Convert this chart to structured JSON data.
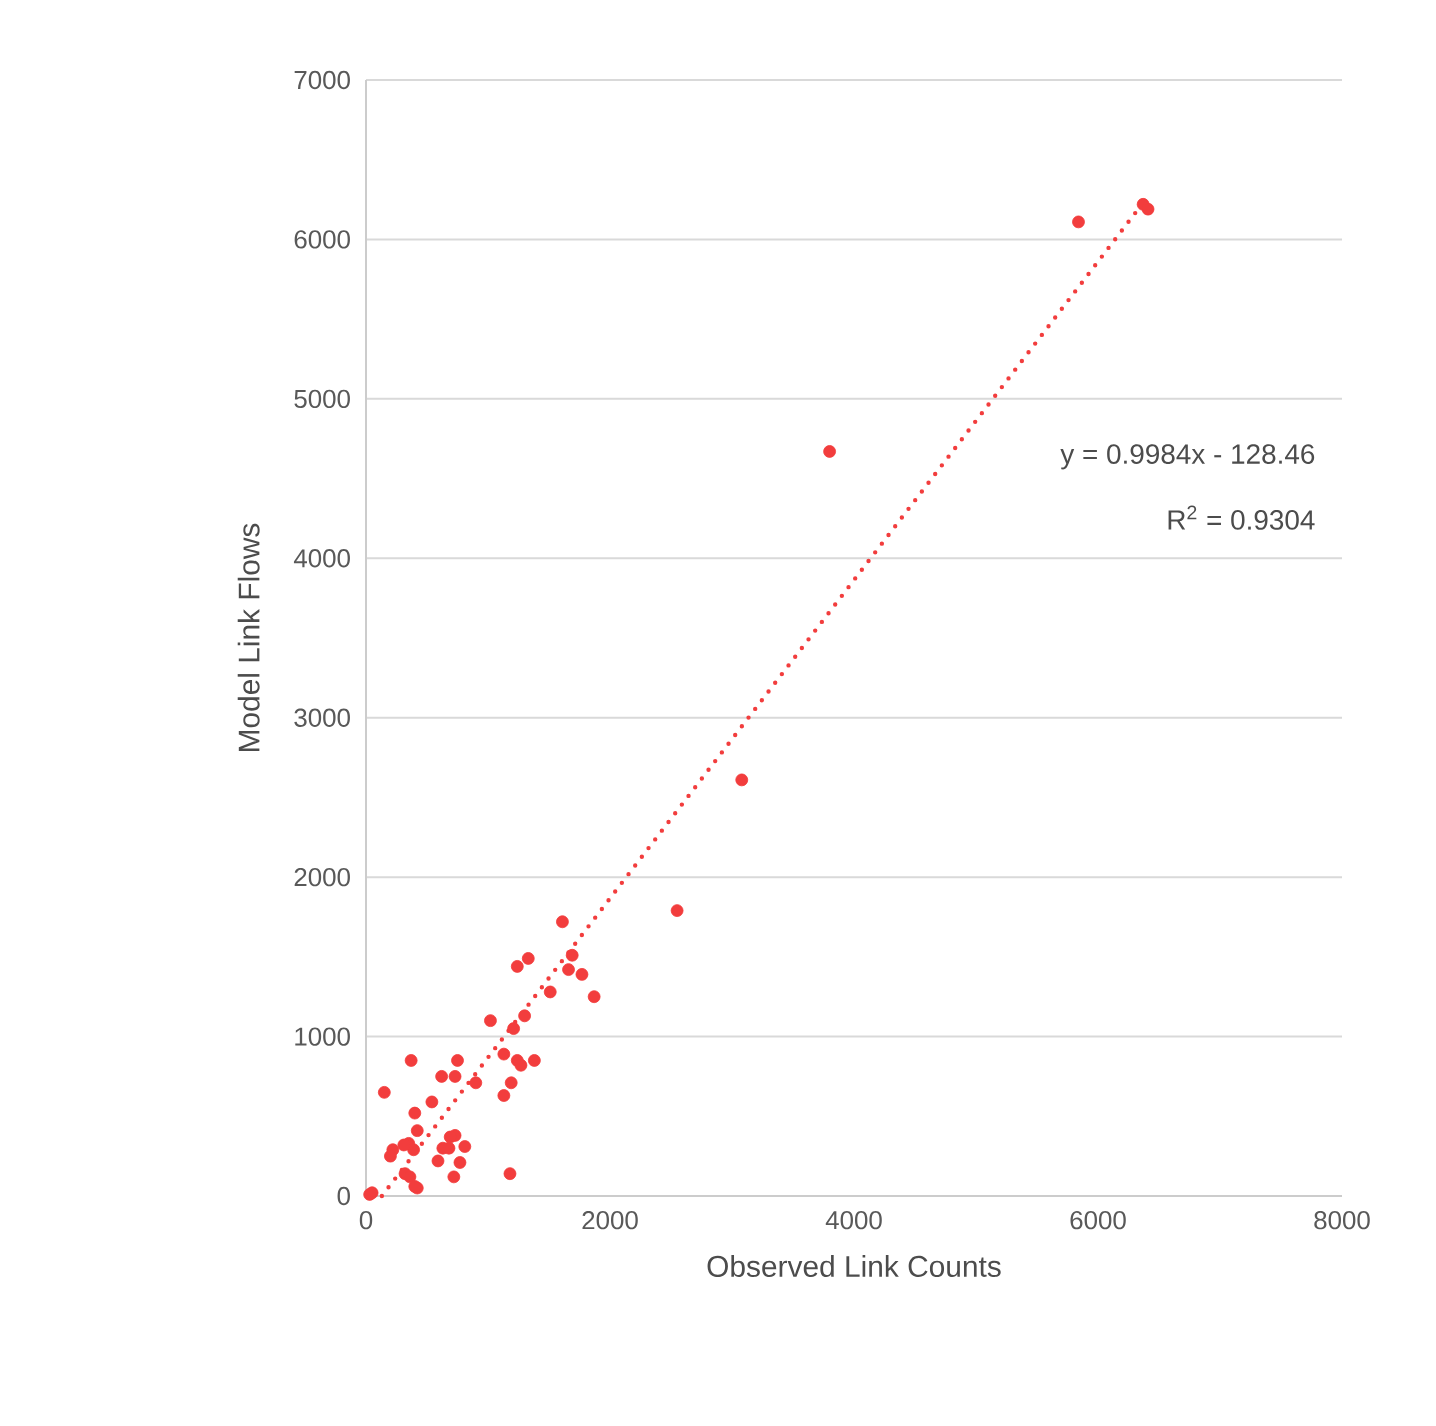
{
  "chart_data": {
    "type": "scatter",
    "xlabel": "Observed Link Counts",
    "ylabel": "Model Link Flows",
    "xlim": [
      0,
      8000
    ],
    "ylim": [
      0,
      7000
    ],
    "xticks": [
      0,
      2000,
      4000,
      6000,
      8000
    ],
    "yticks": [
      0,
      1000,
      2000,
      3000,
      4000,
      5000,
      6000,
      7000
    ],
    "grid": "y",
    "annotations": [
      "y = 0.9984x - 128.46",
      "R$^{2}$ = 0.9304"
    ],
    "series": [
      {
        "color": "#f23d3d",
        "marker": "circle",
        "x": [
          1610,
          2550,
          1330,
          1240,
          1690,
          1660,
          1770,
          1510,
          1870,
          1020,
          1300,
          1210,
          370,
          750,
          730,
          620,
          1130,
          1240,
          1270,
          1380,
          900,
          1190,
          1130,
          150,
          540,
          400,
          420,
          730,
          690,
          810,
          630,
          680,
          590,
          770,
          720,
          1180,
          390,
          350,
          310,
          220,
          200,
          320,
          360,
          420,
          400,
          50,
          30,
          5840,
          6370,
          6410,
          3800,
          3080
        ],
        "values": [
          1720,
          1790,
          1490,
          1440,
          1510,
          1420,
          1390,
          1280,
          1250,
          1100,
          1130,
          1050,
          850,
          850,
          750,
          750,
          890,
          850,
          820,
          850,
          710,
          710,
          630,
          650,
          590,
          520,
          410,
          380,
          370,
          310,
          300,
          300,
          220,
          210,
          120,
          140,
          290,
          330,
          320,
          290,
          250,
          140,
          120,
          50,
          60,
          20,
          10,
          6110,
          6220,
          6190,
          4670,
          2610
        ]
      },
      {
        "type": "line",
        "color": "#f23d3d",
        "line_style": "dotted",
        "marker": "none",
        "x": [
          130,
          6410
        ],
        "values": [
          0,
          6270
        ]
      }
    ]
  }
}
